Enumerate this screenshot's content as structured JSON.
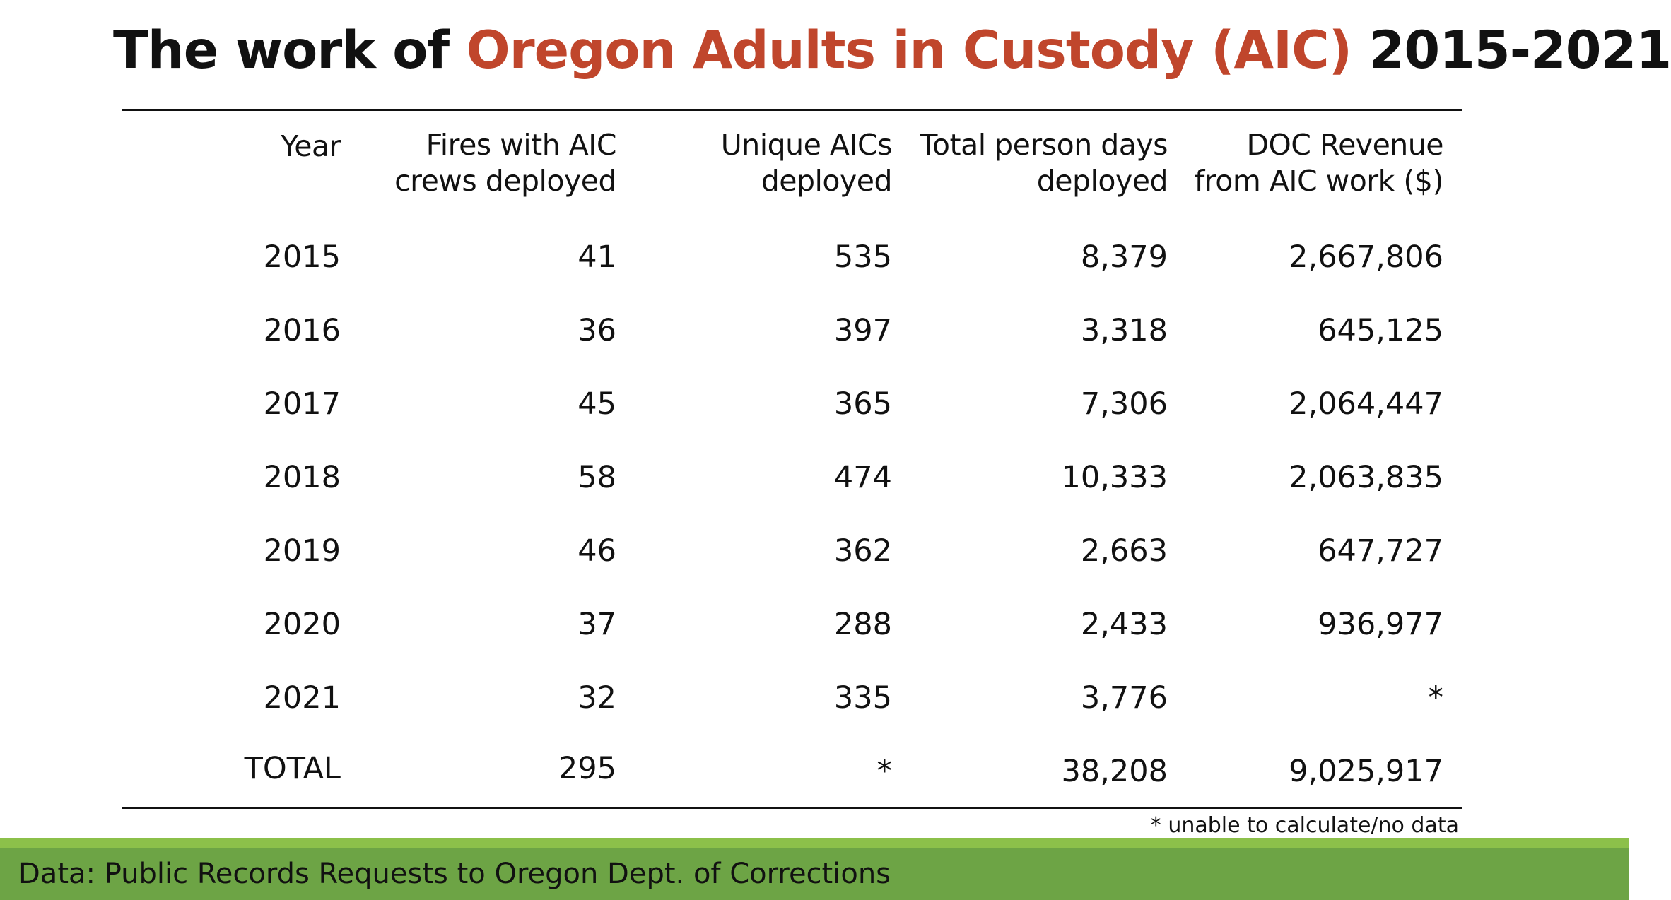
{
  "title": {
    "prefix": "The work of ",
    "highlight": "Oregon Adults in Custody (AIC)",
    "suffix": " 2015-2021"
  },
  "table": {
    "headers": [
      [
        "Year"
      ],
      [
        "Fires with AIC",
        "crews deployed"
      ],
      [
        "Unique AICs",
        "deployed"
      ],
      [
        "Total person days",
        "deployed"
      ],
      [
        "DOC Revenue",
        "from AIC work ($)"
      ]
    ],
    "rows": [
      [
        "2015",
        "41",
        "535",
        "8,379",
        "2,667,806"
      ],
      [
        "2016",
        "36",
        "397",
        "3,318",
        "645,125"
      ],
      [
        "2017",
        "45",
        "365",
        "7,306",
        "2,064,447"
      ],
      [
        "2018",
        "58",
        "474",
        "10,333",
        "2,063,835"
      ],
      [
        "2019",
        "46",
        "362",
        "2,663",
        "647,727"
      ],
      [
        "2020",
        "37",
        "288",
        "2,433",
        "936,977"
      ],
      [
        "2021",
        "32",
        "335",
        "3,776",
        "*"
      ],
      [
        "TOTAL",
        "295",
        "*",
        "38,208",
        "9,025,917"
      ]
    ]
  },
  "footnote": "* unable to calculate/no data",
  "footer": "Data: Public Records Requests to Oregon Dept. of Corrections",
  "colors": {
    "accent": "#c0462c",
    "footer_green": "#6da445",
    "footer_light_green": "#8cc04a"
  }
}
